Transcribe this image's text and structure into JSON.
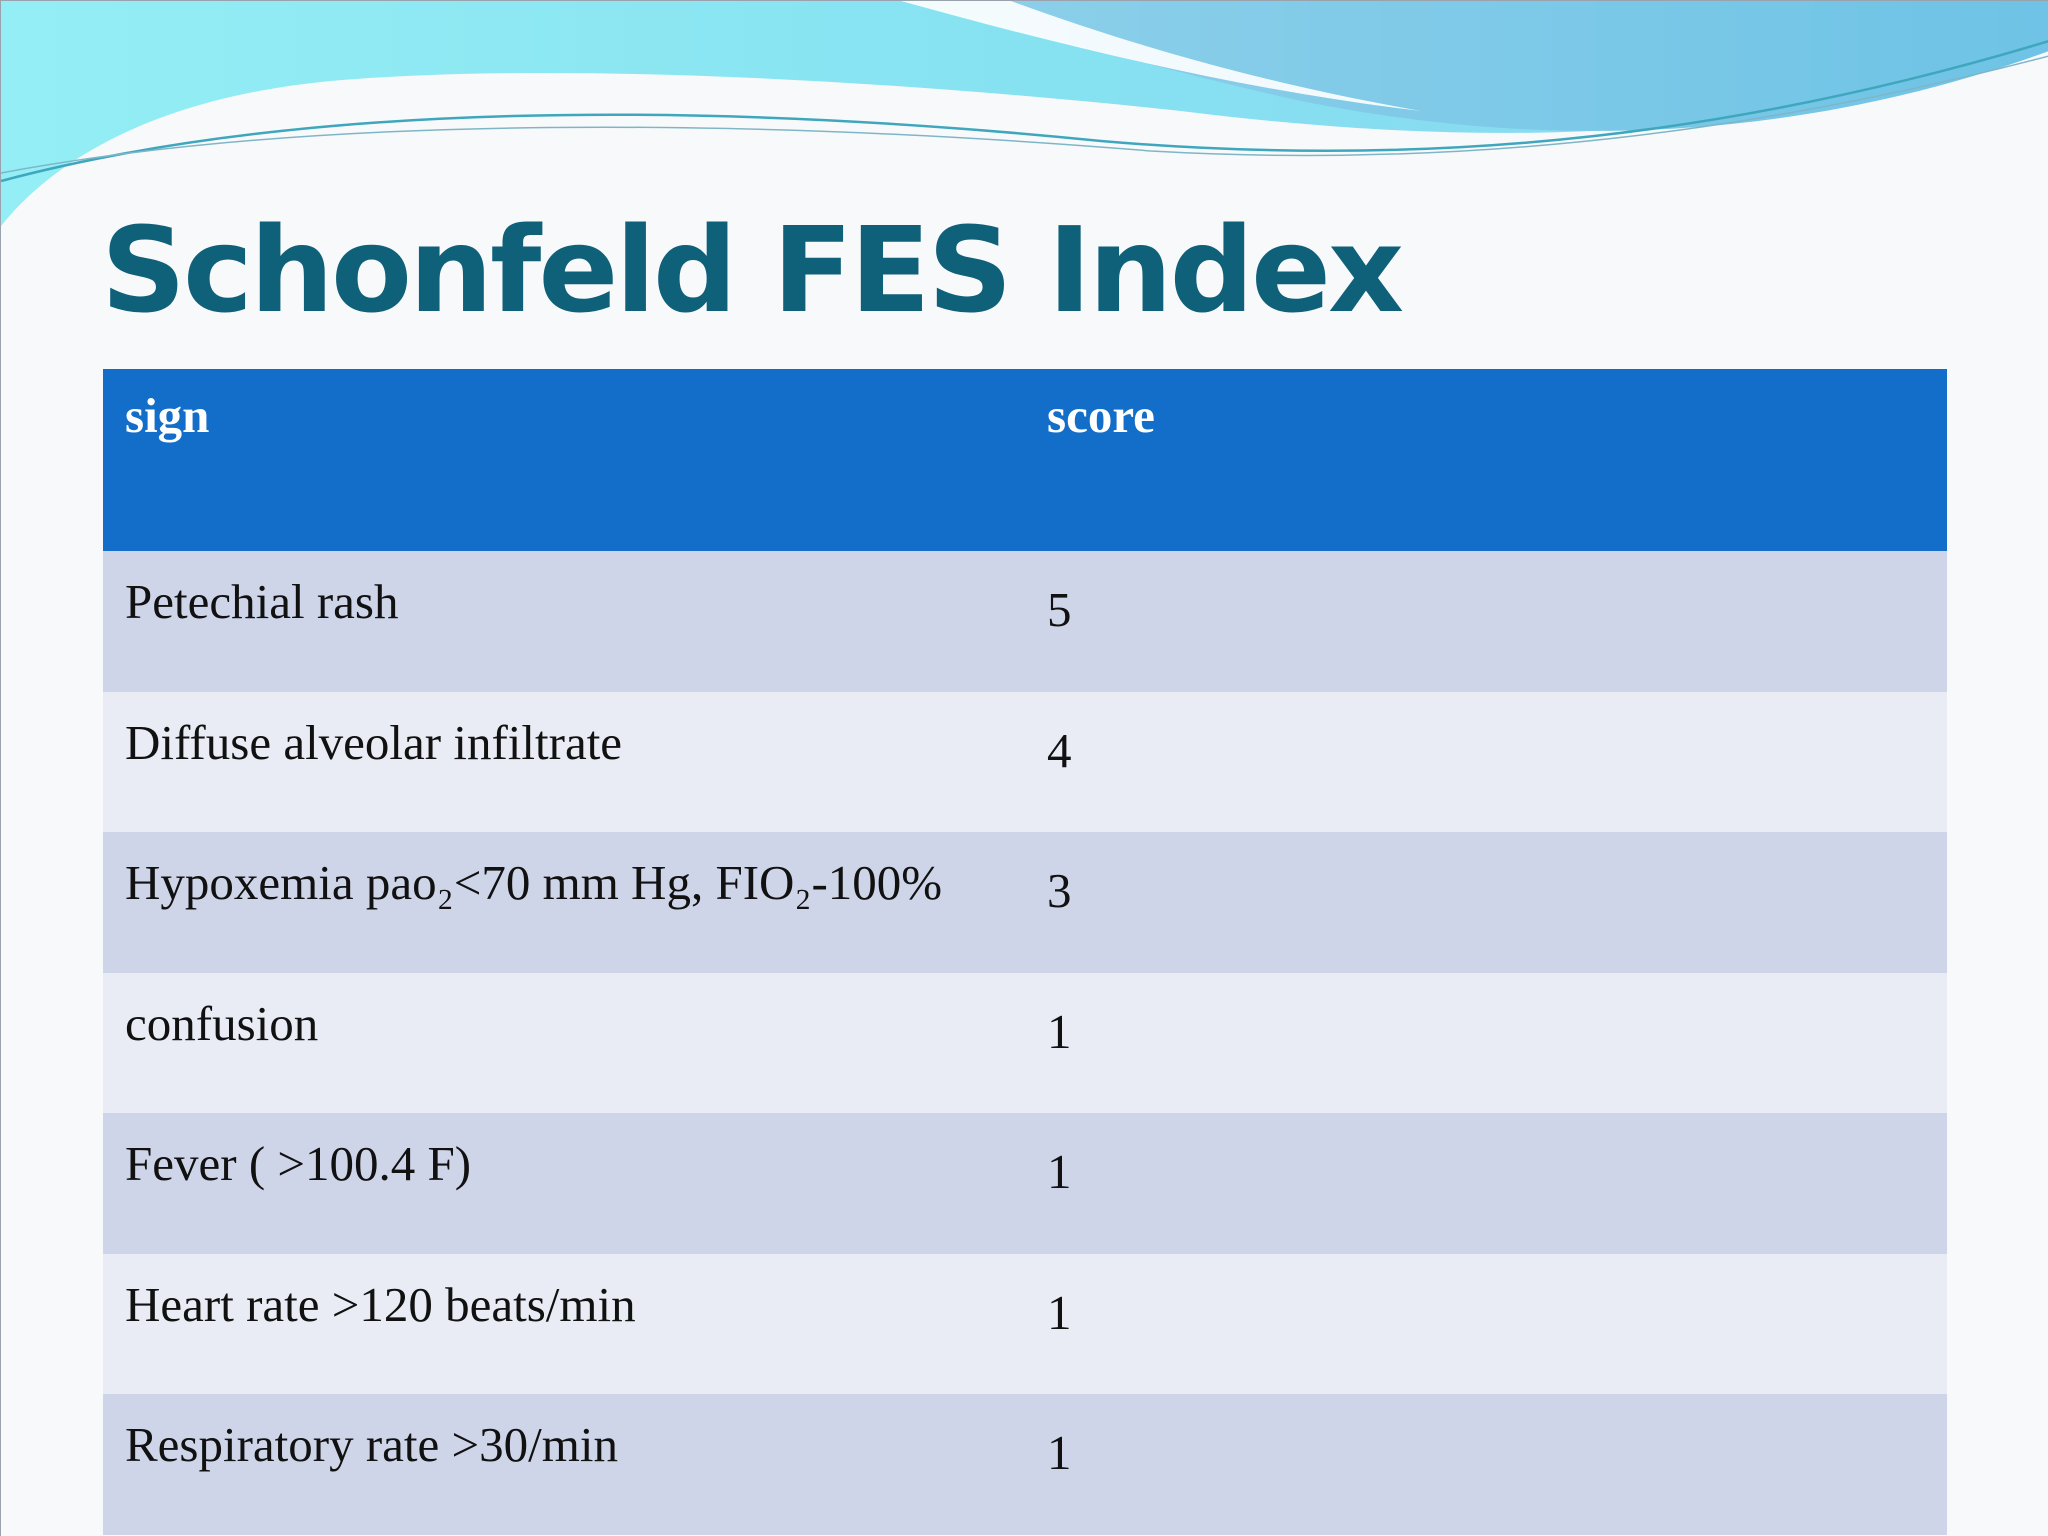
{
  "slide": {
    "title": "Schonfeld FES Index"
  },
  "table": {
    "headers": [
      "sign",
      "score"
    ],
    "rows": [
      {
        "sign": "Petechial rash",
        "score": "5"
      },
      {
        "sign": "Diffuse alveolar infiltrate",
        "score": "4"
      },
      {
        "sign": "Hypoxemia pao₂<70 mm Hg, FIO₂-100%",
        "score": "3"
      },
      {
        "sign": "confusion",
        "score": "1"
      },
      {
        "sign": "Fever ( >100.4 F)",
        "score": "1"
      },
      {
        "sign": "Heart rate >120 beats/min",
        "score": "1"
      },
      {
        "sign": "Respiratory rate >30/min",
        "score": "1"
      }
    ]
  },
  "colors": {
    "title": "#0f6079",
    "header_bg": "#136ec9",
    "row_odd": "#cfd5e9",
    "row_even": "#e9ecf4",
    "wave_light": "#8fe6f2",
    "wave_blue": "#7cc9e8"
  }
}
